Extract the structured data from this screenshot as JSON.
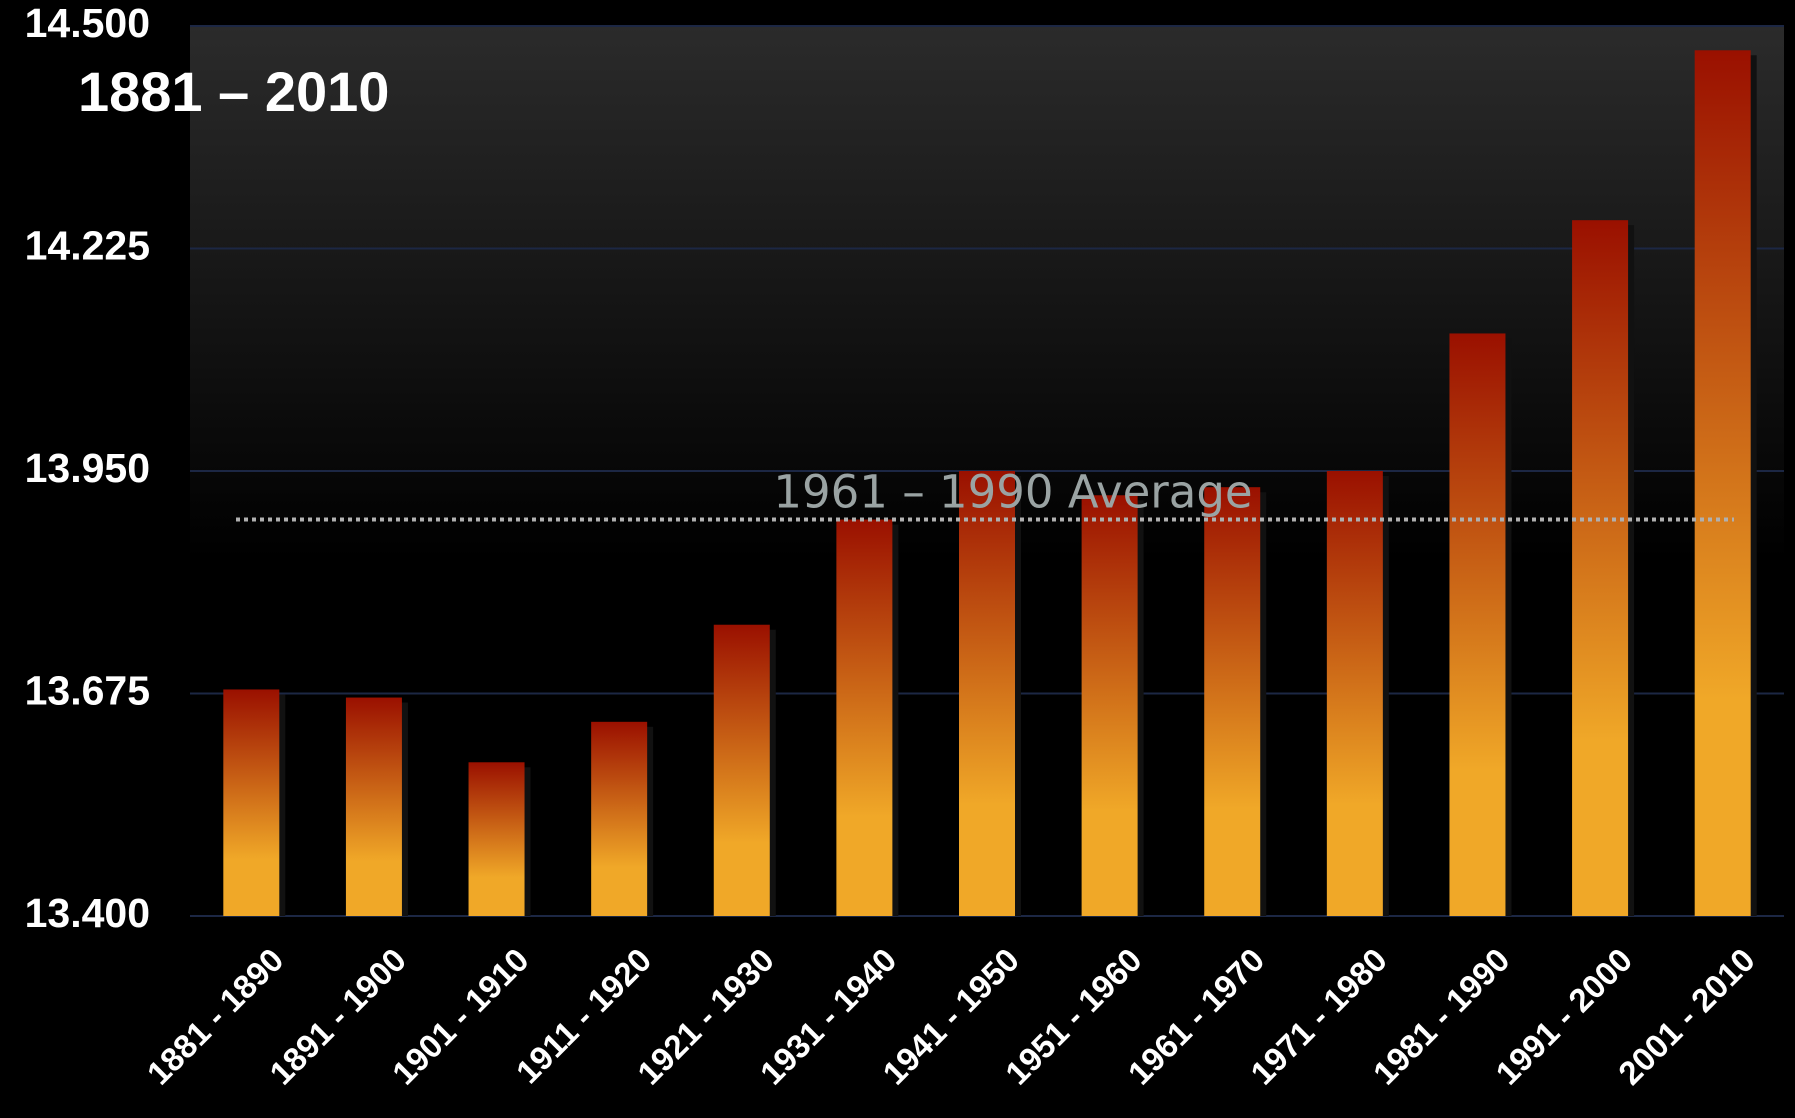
{
  "chart_data": {
    "type": "bar",
    "title": "1881 – 2010",
    "categories": [
      "1881 - 1890",
      "1891 - 1900",
      "1901 - 1910",
      "1911 - 1920",
      "1921 - 1930",
      "1931 - 1940",
      "1941 - 1950",
      "1951 - 1960",
      "1961 - 1970",
      "1971 - 1980",
      "1981 - 1990",
      "1991 - 2000",
      "2001 - 2010"
    ],
    "values": [
      13.68,
      13.67,
      13.59,
      13.64,
      13.76,
      13.89,
      13.95,
      13.92,
      13.93,
      13.95,
      14.12,
      14.26,
      14.47
    ],
    "color_top": "#9a1000",
    "color_bottom": "#f0a828",
    "ylim": [
      13.4,
      14.5
    ],
    "yticks": [
      {
        "value": 13.4,
        "label": "13.400"
      },
      {
        "value": 13.675,
        "label": "13.675"
      },
      {
        "value": 13.95,
        "label": "13.950"
      },
      {
        "value": 14.225,
        "label": "14.225"
      },
      {
        "value": 14.5,
        "label": "14.500"
      }
    ],
    "grid": true,
    "reference_line": {
      "label": "1961 – 1990 Average",
      "value": 13.89,
      "color": "#b0b0b0"
    }
  }
}
